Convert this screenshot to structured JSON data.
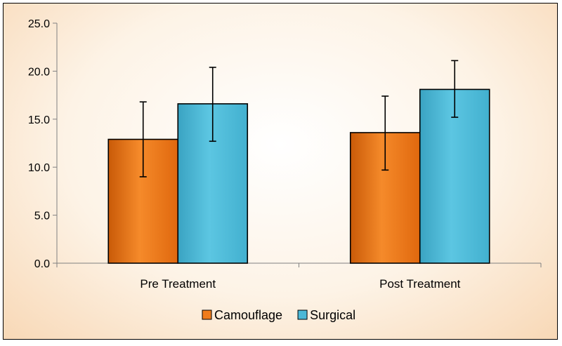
{
  "chart_data": {
    "type": "bar",
    "title": "",
    "xlabel": "",
    "ylabel": "",
    "categories": [
      "Pre Treatment",
      "Post Treatment"
    ],
    "ylim": [
      0,
      25
    ],
    "yticks": [
      "0.0",
      "5.0",
      "10.0",
      "15.0",
      "20.0",
      "25.0"
    ],
    "grid": false,
    "legend_position": "bottom",
    "series": [
      {
        "name": "Camouflage",
        "color": "#f07c1c",
        "values": [
          12.9,
          13.6
        ],
        "error_low": [
          9.0,
          9.7
        ],
        "error_high": [
          16.8,
          17.4
        ]
      },
      {
        "name": "Surgical",
        "color": "#4cb8d6",
        "values": [
          16.6,
          18.1
        ],
        "error_low": [
          12.7,
          15.2
        ],
        "error_high": [
          20.4,
          21.1
        ]
      }
    ]
  }
}
